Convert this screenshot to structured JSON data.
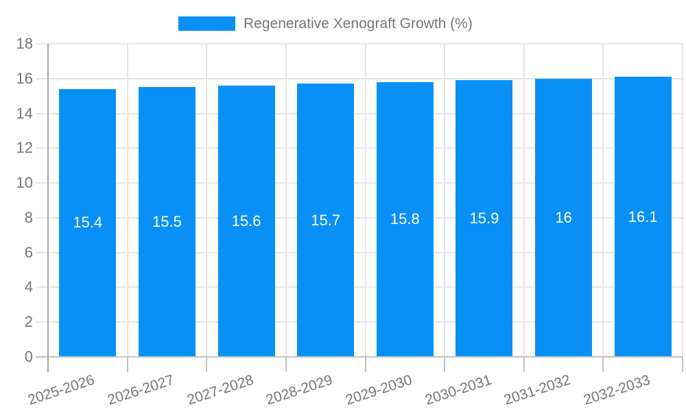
{
  "chart_data": {
    "type": "bar",
    "title": "Regenerative Xenograft Growth (%)",
    "legend_position": "top",
    "grid": true,
    "categories": [
      "2025-2026",
      "2026-2027",
      "2027-2028",
      "2028-2029",
      "2029-2030",
      "2030-2031",
      "2031-2032",
      "2032-2033"
    ],
    "series": [
      {
        "name": "Regenerative Xenograft Growth (%)",
        "values": [
          15.4,
          15.5,
          15.6,
          15.7,
          15.8,
          15.9,
          16,
          16.1
        ],
        "bar_labels": [
          "15.4",
          "15.5",
          "15.6",
          "15.7",
          "15.8",
          "15.9",
          "16",
          "16.1"
        ]
      }
    ],
    "xlabel": "",
    "ylabel": "",
    "ylim": [
      0,
      18
    ],
    "yticks": [
      0,
      2,
      4,
      6,
      8,
      10,
      12,
      14,
      16,
      18
    ],
    "colors": {
      "bar": "#0990f6",
      "gridline": "#e4e4e4",
      "axis": "#a4a4a4",
      "baseline": "#c2c2c2",
      "tick": "#c2c2c2",
      "axis_text": "#757575",
      "bar_label_text": "#ffffff",
      "legend_text": "#757575",
      "background": "#ffffff"
    }
  }
}
